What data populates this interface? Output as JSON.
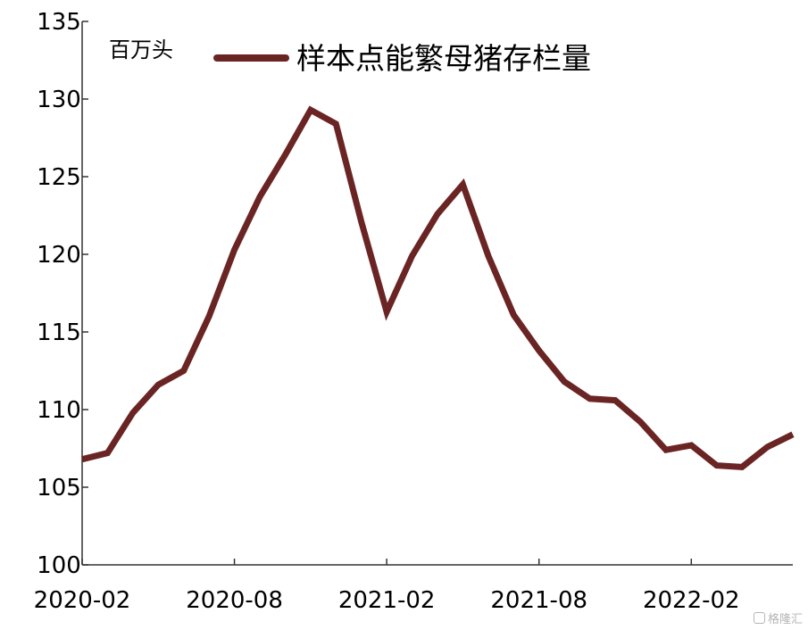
{
  "chart_data": {
    "type": "line",
    "unit_label": "百万头",
    "ylim": [
      100,
      135
    ],
    "yticks": [
      100,
      105,
      110,
      115,
      120,
      125,
      130,
      135
    ],
    "x_tick_labels": [
      "2020-02",
      "2020-08",
      "2021-02",
      "2021-08",
      "2022-02"
    ],
    "x": [
      "2020-02",
      "2020-03",
      "2020-04",
      "2020-05",
      "2020-06",
      "2020-07",
      "2020-08",
      "2020-09",
      "2020-10",
      "2020-11",
      "2020-12",
      "2021-01",
      "2021-02",
      "2021-03",
      "2021-04",
      "2021-05",
      "2021-06",
      "2021-07",
      "2021-08",
      "2021-09",
      "2021-10",
      "2021-11",
      "2021-12",
      "2022-01",
      "2022-02",
      "2022-03",
      "2022-04",
      "2022-05",
      "2022-06"
    ],
    "series": [
      {
        "name": "样本点能繁母猪存栏量",
        "color": "#6b2424",
        "values": [
          106.8,
          107.2,
          109.8,
          111.6,
          112.5,
          116.0,
          120.3,
          123.7,
          126.4,
          129.3,
          128.4,
          122.1,
          116.3,
          119.9,
          122.6,
          124.5,
          119.9,
          116.1,
          113.8,
          111.8,
          110.7,
          110.6,
          109.2,
          107.4,
          107.7,
          106.4,
          106.3,
          107.6,
          108.4
        ]
      }
    ],
    "grid": false,
    "legend_position": "top"
  },
  "watermark": {
    "icon": "gelonghui-logo-icon",
    "text": "格隆汇"
  }
}
